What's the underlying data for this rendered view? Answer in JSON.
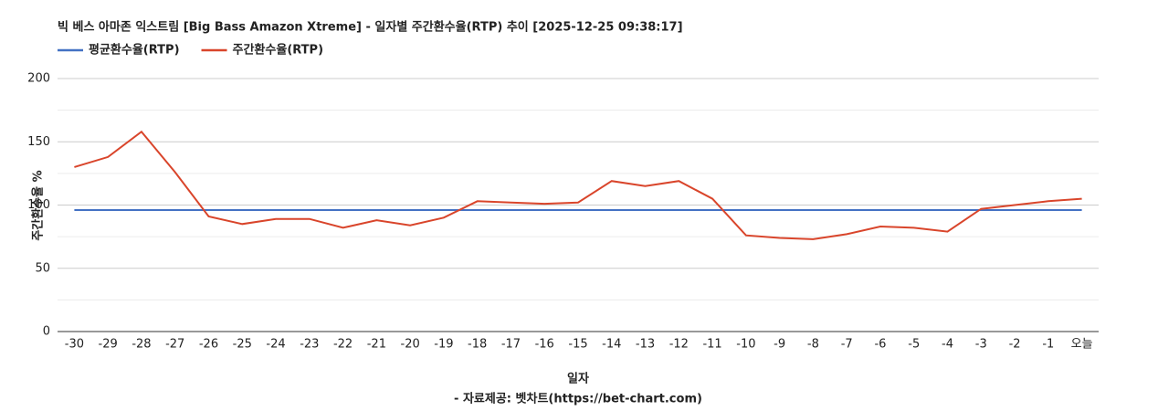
{
  "chart_data": {
    "type": "line",
    "title": "빅 베스 아마존 익스트림 [Big Bass Amazon Xtreme] - 일자별 주간환수율(RTP) 추이 [2025-12-25 09:38:17]",
    "x_label": "일자",
    "y_label": "주간환수율 %",
    "source": "- 자료제공: 벳차트(https://bet-chart.com)",
    "categories": [
      "-30",
      "-29",
      "-28",
      "-27",
      "-26",
      "-25",
      "-24",
      "-23",
      "-22",
      "-21",
      "-20",
      "-19",
      "-18",
      "-17",
      "-16",
      "-15",
      "-14",
      "-13",
      "-12",
      "-11",
      "-10",
      "-9",
      "-8",
      "-7",
      "-6",
      "-5",
      "-4",
      "-3",
      "-2",
      "-1",
      "오늘"
    ],
    "series": [
      {
        "name": "평균환수율(RTP)",
        "color": "#4472c4",
        "values": [
          96,
          96,
          96,
          96,
          96,
          96,
          96,
          96,
          96,
          96,
          96,
          96,
          96,
          96,
          96,
          96,
          96,
          96,
          96,
          96,
          96,
          96,
          96,
          96,
          96,
          96,
          96,
          96,
          96,
          96,
          96
        ]
      },
      {
        "name": "주간환수율(RTP)",
        "color": "#d9452b",
        "values": [
          130,
          138,
          158,
          126,
          91,
          85,
          89,
          89,
          82,
          88,
          84,
          90,
          103,
          102,
          101,
          102,
          119,
          115,
          119,
          105,
          76,
          74,
          73,
          77,
          83,
          82,
          79,
          97,
          100,
          103,
          105
        ]
      }
    ],
    "ylim": [
      0,
      200
    ],
    "yticks": [
      0,
      50,
      100,
      150,
      200
    ],
    "minor_grid": [
      25,
      75,
      125,
      175
    ],
    "grid": true,
    "legend": "top-left"
  }
}
